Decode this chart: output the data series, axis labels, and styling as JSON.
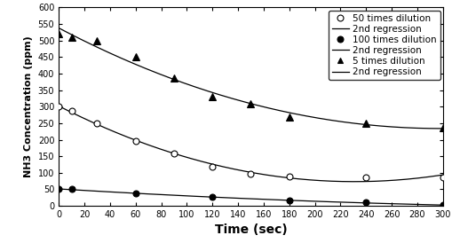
{
  "title": "",
  "xlabel": "Time (sec)",
  "ylabel": "NH3 Concentration (ppm)",
  "xlim": [
    0,
    300
  ],
  "ylim": [
    0,
    600
  ],
  "xticks": [
    0,
    20,
    40,
    60,
    80,
    100,
    120,
    140,
    160,
    180,
    200,
    220,
    240,
    260,
    280,
    300
  ],
  "yticks": [
    0,
    50,
    100,
    150,
    200,
    250,
    300,
    350,
    400,
    450,
    500,
    550,
    600
  ],
  "series_50x": {
    "label": "50 times dilution",
    "x": [
      0,
      10,
      30,
      60,
      90,
      120,
      150,
      180,
      240,
      300
    ],
    "y": [
      300,
      287,
      250,
      195,
      158,
      118,
      97,
      90,
      85,
      87
    ],
    "marker": "o",
    "markerfacecolor": "white",
    "markeredgecolor": "black",
    "markersize": 5
  },
  "series_100x": {
    "label": "100 times dilution",
    "x": [
      0,
      10,
      60,
      120,
      180,
      240,
      300
    ],
    "y": [
      50,
      50,
      38,
      27,
      15,
      10,
      2
    ],
    "marker": "o",
    "markerfacecolor": "black",
    "markeredgecolor": "black",
    "markersize": 5
  },
  "series_5x": {
    "label": "5 times dilution",
    "x": [
      0,
      10,
      30,
      60,
      90,
      120,
      150,
      180,
      240,
      300
    ],
    "y": [
      520,
      510,
      500,
      450,
      387,
      330,
      308,
      268,
      250,
      237
    ],
    "marker": "^",
    "markerfacecolor": "black",
    "markeredgecolor": "black",
    "markersize": 6
  },
  "line_color": "black",
  "background_color": "white",
  "tick_fontsize": 7,
  "xlabel_fontsize": 10,
  "ylabel_fontsize": 8,
  "legend_fontsize": 7.5
}
